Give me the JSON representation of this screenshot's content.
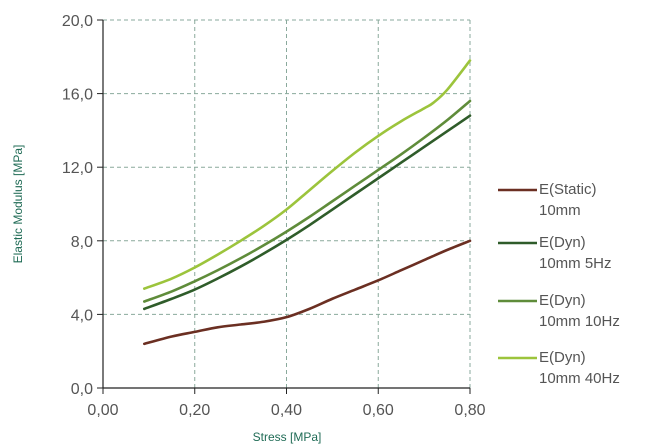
{
  "chart_data": {
    "type": "line",
    "xlabel": "Stress [MPa]",
    "ylabel": "Elastic Modulus [MPa]",
    "xlim": [
      0,
      0.8
    ],
    "ylim": [
      0,
      20
    ],
    "x_ticks": [
      "0,00",
      "0,20",
      "0,40",
      "0,60",
      "0,80"
    ],
    "y_ticks": [
      "0,0",
      "4,0",
      "8,0",
      "12,0",
      "16,0",
      "20,0"
    ],
    "x_tick_values": [
      0,
      0.2,
      0.4,
      0.6,
      0.8
    ],
    "y_tick_values": [
      0,
      4,
      8,
      12,
      16,
      20
    ],
    "grid": true,
    "legend_position": "right",
    "series": [
      {
        "name_lines": [
          "E(Static)",
          "10mm"
        ],
        "color": "#6b2f22",
        "x": [
          0.09,
          0.15,
          0.2,
          0.25,
          0.3,
          0.35,
          0.4,
          0.45,
          0.5,
          0.55,
          0.6,
          0.65,
          0.7,
          0.75,
          0.8
        ],
        "y": [
          2.4,
          2.8,
          3.05,
          3.3,
          3.45,
          3.6,
          3.85,
          4.3,
          4.85,
          5.35,
          5.85,
          6.4,
          6.95,
          7.5,
          8.0
        ]
      },
      {
        "name_lines": [
          "E(Dyn)",
          "10mm 5Hz"
        ],
        "color": "#2f5c2a",
        "x": [
          0.09,
          0.15,
          0.2,
          0.25,
          0.3,
          0.35,
          0.4,
          0.45,
          0.5,
          0.55,
          0.6,
          0.65,
          0.7,
          0.75,
          0.8
        ],
        "y": [
          4.3,
          4.85,
          5.35,
          5.95,
          6.6,
          7.3,
          8.05,
          8.85,
          9.7,
          10.55,
          11.4,
          12.25,
          13.1,
          13.95,
          14.8
        ]
      },
      {
        "name_lines": [
          "E(Dyn)",
          "10mm 10Hz"
        ],
        "color": "#5f8c3a",
        "x": [
          0.09,
          0.15,
          0.2,
          0.25,
          0.3,
          0.35,
          0.4,
          0.45,
          0.5,
          0.55,
          0.6,
          0.65,
          0.7,
          0.75,
          0.8
        ],
        "y": [
          4.7,
          5.25,
          5.8,
          6.4,
          7.05,
          7.75,
          8.5,
          9.3,
          10.15,
          11.0,
          11.85,
          12.7,
          13.6,
          14.55,
          15.6
        ]
      },
      {
        "name_lines": [
          "E(Dyn)",
          "10mm 40Hz"
        ],
        "color": "#9cc43c",
        "x": [
          0.09,
          0.15,
          0.2,
          0.25,
          0.3,
          0.35,
          0.4,
          0.45,
          0.5,
          0.55,
          0.6,
          0.65,
          0.7,
          0.72,
          0.75,
          0.8
        ],
        "y": [
          5.4,
          5.95,
          6.55,
          7.25,
          8.0,
          8.8,
          9.7,
          10.75,
          11.8,
          12.8,
          13.7,
          14.5,
          15.2,
          15.5,
          16.2,
          17.8
        ]
      }
    ]
  }
}
